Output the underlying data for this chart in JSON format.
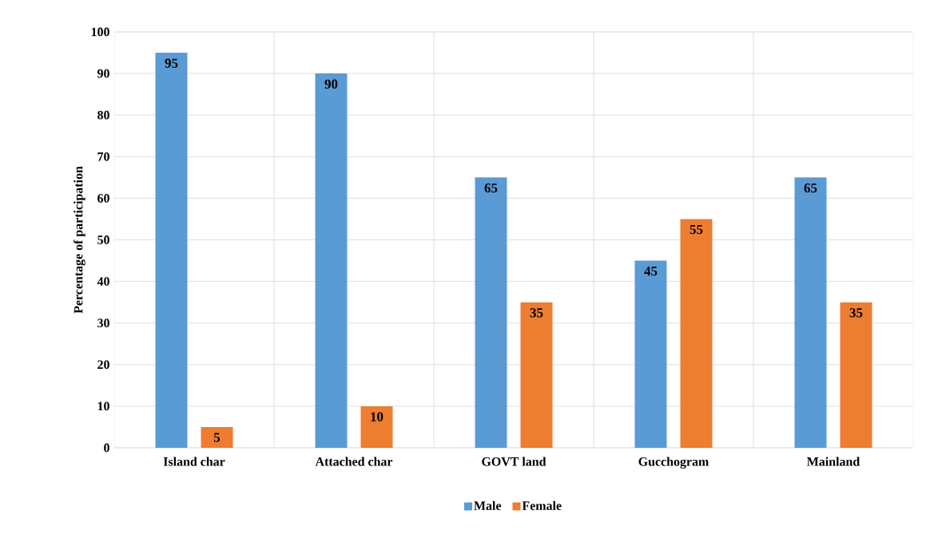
{
  "chart_data": {
    "type": "bar",
    "ylabel": "Percentage of participation",
    "categories": [
      "Island char",
      "Attached char",
      "GOVT land",
      "Gucchogram",
      "Mainland"
    ],
    "series": [
      {
        "name": "Male",
        "color": "#5b9bd5",
        "values": [
          95,
          90,
          65,
          45,
          65
        ]
      },
      {
        "name": "Female",
        "color": "#ed7d31",
        "values": [
          5,
          10,
          35,
          55,
          35
        ]
      }
    ],
    "ylim": [
      0,
      100
    ],
    "yticks": [
      0,
      10,
      20,
      30,
      40,
      50,
      60,
      70,
      80,
      90,
      100
    ],
    "grid": true,
    "legend": "bottom",
    "data_labels": true
  }
}
